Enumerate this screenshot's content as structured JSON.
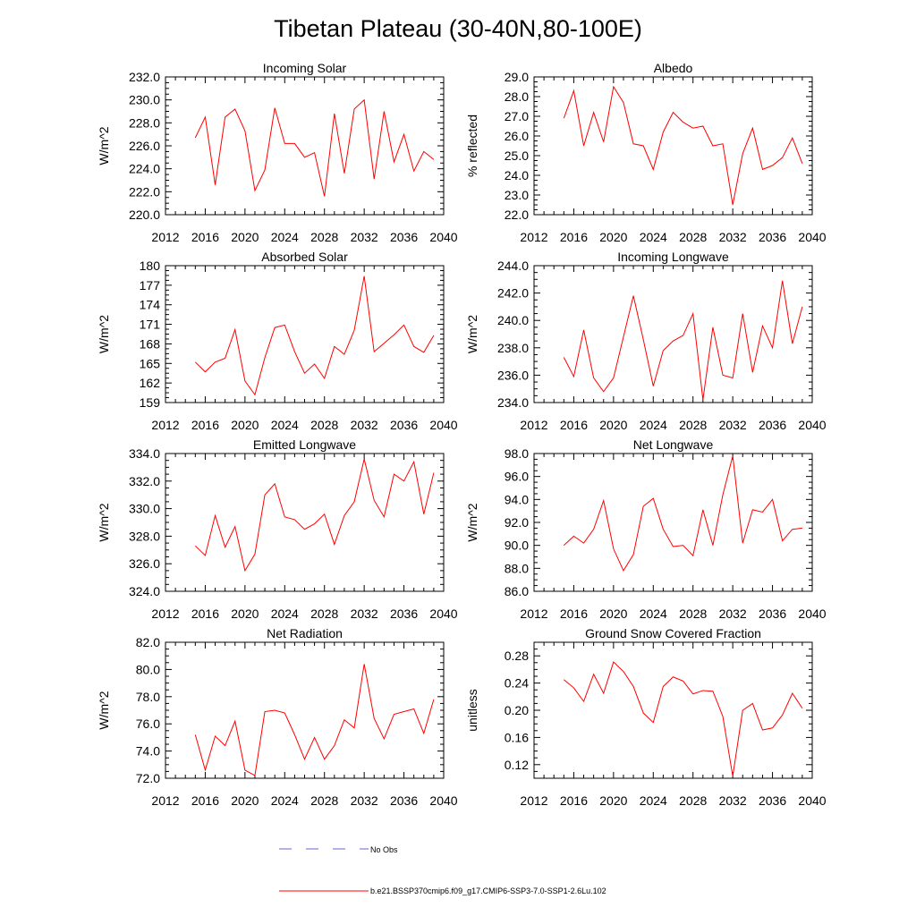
{
  "title": "Tibetan Plateau (30-40N,80-100E)",
  "legend": {
    "items": [
      {
        "label": "No Obs",
        "color": "#6666cc",
        "style": "dashed"
      },
      {
        "label": "b.e21.BSSP370cmip6.f09_g17.CMIP6-SSP3-7.0-SSP1-2.6Lu.102",
        "color": "#ff0000",
        "style": "solid"
      }
    ]
  },
  "chart_data": [
    {
      "type": "line",
      "title": "Incoming Solar",
      "xlabel": "",
      "ylabel": "W/m^2",
      "xlim": [
        2012,
        2040
      ],
      "ylim": [
        220.0,
        232.0
      ],
      "xticks": [
        2012,
        2016,
        2020,
        2024,
        2028,
        2032,
        2036,
        2040
      ],
      "yticks": [
        220.0,
        222.0,
        224.0,
        226.0,
        228.0,
        230.0,
        232.0
      ],
      "ytick_decimals": 1,
      "x": [
        2015,
        2016,
        2017,
        2018,
        2019,
        2020,
        2021,
        2022,
        2023,
        2024,
        2025,
        2026,
        2027,
        2028,
        2029,
        2030,
        2031,
        2032,
        2033,
        2034,
        2035,
        2036,
        2037,
        2038,
        2039
      ],
      "series": [
        {
          "name": "b.e21.BSSP370cmip6.f09_g17.CMIP6-SSP3-7.0-SSP1-2.6Lu.102",
          "color": "#ff0000",
          "values": [
            226.7,
            228.5,
            222.6,
            228.5,
            229.2,
            227.3,
            222.1,
            223.9,
            229.3,
            226.2,
            226.2,
            225.0,
            225.4,
            221.6,
            228.8,
            223.6,
            229.2,
            230.0,
            223.1,
            229.0,
            224.6,
            227.0,
            223.8,
            225.5,
            224.8
          ]
        }
      ]
    },
    {
      "type": "line",
      "title": "Albedo",
      "xlabel": "",
      "ylabel": "% reflected",
      "xlim": [
        2012,
        2040
      ],
      "ylim": [
        22.0,
        29.0
      ],
      "xticks": [
        2012,
        2016,
        2020,
        2024,
        2028,
        2032,
        2036,
        2040
      ],
      "yticks": [
        22.0,
        23.0,
        24.0,
        25.0,
        26.0,
        27.0,
        28.0,
        29.0
      ],
      "ytick_decimals": 1,
      "x": [
        2015,
        2016,
        2017,
        2018,
        2019,
        2020,
        2021,
        2022,
        2023,
        2024,
        2025,
        2026,
        2027,
        2028,
        2029,
        2030,
        2031,
        2032,
        2033,
        2034,
        2035,
        2036,
        2037,
        2038,
        2039
      ],
      "series": [
        {
          "name": "b.e21.BSSP370cmip6.f09_g17.CMIP6-SSP3-7.0-SSP1-2.6Lu.102",
          "color": "#ff0000",
          "values": [
            26.9,
            28.3,
            25.5,
            27.2,
            25.7,
            28.5,
            27.7,
            25.6,
            25.5,
            24.3,
            26.2,
            27.2,
            26.7,
            26.4,
            26.5,
            25.5,
            25.6,
            22.5,
            25.1,
            26.4,
            24.3,
            24.5,
            24.9,
            25.9,
            24.6
          ]
        }
      ]
    },
    {
      "type": "line",
      "title": "Absorbed Solar",
      "xlabel": "",
      "ylabel": "W/m^2",
      "xlim": [
        2012,
        2040
      ],
      "ylim": [
        159,
        180
      ],
      "xticks": [
        2012,
        2016,
        2020,
        2024,
        2028,
        2032,
        2036,
        2040
      ],
      "yticks": [
        159,
        162,
        165,
        168,
        171,
        174,
        177,
        180
      ],
      "ytick_decimals": 0,
      "x": [
        2015,
        2016,
        2017,
        2018,
        2019,
        2020,
        2021,
        2022,
        2023,
        2024,
        2025,
        2026,
        2027,
        2028,
        2029,
        2030,
        2031,
        2032,
        2033,
        2034,
        2035,
        2036,
        2037,
        2038,
        2039
      ],
      "series": [
        {
          "name": "b.e21.BSSP370cmip6.f09_g17.CMIP6-SSP3-7.0-SSP1-2.6Lu.102",
          "color": "#ff0000",
          "values": [
            165.2,
            163.7,
            165.2,
            165.8,
            170.2,
            162.3,
            160.2,
            165.9,
            170.5,
            170.9,
            166.8,
            163.5,
            164.9,
            162.7,
            167.6,
            166.4,
            170.1,
            178.4,
            166.8,
            168.1,
            169.4,
            170.9,
            167.6,
            166.7,
            169.3
          ]
        }
      ]
    },
    {
      "type": "line",
      "title": "Incoming Longwave",
      "xlabel": "",
      "ylabel": "W/m^2",
      "xlim": [
        2012,
        2040
      ],
      "ylim": [
        234.0,
        244.0
      ],
      "xticks": [
        2012,
        2016,
        2020,
        2024,
        2028,
        2032,
        2036,
        2040
      ],
      "yticks": [
        234.0,
        236.0,
        238.0,
        240.0,
        242.0,
        244.0
      ],
      "ytick_decimals": 1,
      "x": [
        2015,
        2016,
        2017,
        2018,
        2019,
        2020,
        2021,
        2022,
        2023,
        2024,
        2025,
        2026,
        2027,
        2028,
        2029,
        2030,
        2031,
        2032,
        2033,
        2034,
        2035,
        2036,
        2037,
        2038,
        2039
      ],
      "series": [
        {
          "name": "b.e21.BSSP370cmip6.f09_g17.CMIP6-SSP3-7.0-SSP1-2.6Lu.102",
          "color": "#ff0000",
          "values": [
            237.3,
            235.9,
            239.3,
            235.8,
            234.8,
            235.8,
            238.8,
            241.8,
            238.6,
            235.2,
            237.8,
            238.5,
            238.9,
            240.5,
            234.2,
            239.5,
            236.0,
            235.8,
            240.5,
            236.2,
            239.6,
            238.0,
            242.9,
            238.3,
            241.0
          ]
        }
      ]
    },
    {
      "type": "line",
      "title": "Emitted Longwave",
      "xlabel": "",
      "ylabel": "W/m^2",
      "xlim": [
        2012,
        2040
      ],
      "ylim": [
        324.0,
        334.0
      ],
      "xticks": [
        2012,
        2016,
        2020,
        2024,
        2028,
        2032,
        2036,
        2040
      ],
      "yticks": [
        324.0,
        326.0,
        328.0,
        330.0,
        332.0,
        334.0
      ],
      "ytick_decimals": 1,
      "x": [
        2015,
        2016,
        2017,
        2018,
        2019,
        2020,
        2021,
        2022,
        2023,
        2024,
        2025,
        2026,
        2027,
        2028,
        2029,
        2030,
        2031,
        2032,
        2033,
        2034,
        2035,
        2036,
        2037,
        2038,
        2039
      ],
      "series": [
        {
          "name": "b.e21.BSSP370cmip6.f09_g17.CMIP6-SSP3-7.0-SSP1-2.6Lu.102",
          "color": "#ff0000",
          "values": [
            327.3,
            326.6,
            329.5,
            327.2,
            328.7,
            325.5,
            326.7,
            331.0,
            331.8,
            329.4,
            329.2,
            328.5,
            328.9,
            329.6,
            327.4,
            329.5,
            330.5,
            333.6,
            330.6,
            329.4,
            332.5,
            332.0,
            333.4,
            329.6,
            332.6
          ]
        }
      ]
    },
    {
      "type": "line",
      "title": "Net Longwave",
      "xlabel": "",
      "ylabel": "W/m^2",
      "xlim": [
        2012,
        2040
      ],
      "ylim": [
        86.0,
        98.0
      ],
      "xticks": [
        2012,
        2016,
        2020,
        2024,
        2028,
        2032,
        2036,
        2040
      ],
      "yticks": [
        86.0,
        88.0,
        90.0,
        92.0,
        94.0,
        96.0,
        98.0
      ],
      "ytick_decimals": 1,
      "x": [
        2015,
        2016,
        2017,
        2018,
        2019,
        2020,
        2021,
        2022,
        2023,
        2024,
        2025,
        2026,
        2027,
        2028,
        2029,
        2030,
        2031,
        2032,
        2033,
        2034,
        2035,
        2036,
        2037,
        2038,
        2039
      ],
      "series": [
        {
          "name": "b.e21.BSSP370cmip6.f09_g17.CMIP6-SSP3-7.0-SSP1-2.6Lu.102",
          "color": "#ff0000",
          "values": [
            90.0,
            90.8,
            90.2,
            91.4,
            93.9,
            89.7,
            87.8,
            89.2,
            93.4,
            94.1,
            91.4,
            89.9,
            90.0,
            89.1,
            93.1,
            90.0,
            94.4,
            97.8,
            90.2,
            93.1,
            92.9,
            94.0,
            90.4,
            91.4,
            91.5
          ]
        }
      ]
    },
    {
      "type": "line",
      "title": "Net Radiation",
      "xlabel": "",
      "ylabel": "W/m^2",
      "xlim": [
        2012,
        2040
      ],
      "ylim": [
        72.0,
        82.0
      ],
      "xticks": [
        2012,
        2016,
        2020,
        2024,
        2028,
        2032,
        2036,
        2040
      ],
      "yticks": [
        72.0,
        74.0,
        76.0,
        78.0,
        80.0,
        82.0
      ],
      "ytick_decimals": 1,
      "x": [
        2015,
        2016,
        2017,
        2018,
        2019,
        2020,
        2021,
        2022,
        2023,
        2024,
        2025,
        2026,
        2027,
        2028,
        2029,
        2030,
        2031,
        2032,
        2033,
        2034,
        2035,
        2036,
        2037,
        2038,
        2039
      ],
      "series": [
        {
          "name": "b.e21.BSSP370cmip6.f09_g17.CMIP6-SSP3-7.0-SSP1-2.6Lu.102",
          "color": "#ff0000",
          "values": [
            75.2,
            72.6,
            75.1,
            74.4,
            76.2,
            72.6,
            72.2,
            76.9,
            77.0,
            76.8,
            75.2,
            73.4,
            75.0,
            73.4,
            74.4,
            76.3,
            75.7,
            80.4,
            76.4,
            74.9,
            76.7,
            76.9,
            77.1,
            75.3,
            77.8
          ]
        }
      ]
    },
    {
      "type": "line",
      "title": "Ground Snow Covered Fraction",
      "xlabel": "",
      "ylabel": "unitless",
      "xlim": [
        2012,
        2040
      ],
      "ylim": [
        0.1,
        0.3
      ],
      "xticks": [
        2012,
        2016,
        2020,
        2024,
        2028,
        2032,
        2036,
        2040
      ],
      "yticks": [
        0.12,
        0.16,
        0.2,
        0.24,
        0.28
      ],
      "ytick_decimals": 2,
      "x": [
        2015,
        2016,
        2017,
        2018,
        2019,
        2020,
        2021,
        2022,
        2023,
        2024,
        2025,
        2026,
        2027,
        2028,
        2029,
        2030,
        2031,
        2032,
        2033,
        2034,
        2035,
        2036,
        2037,
        2038,
        2039
      ],
      "series": [
        {
          "name": "b.e21.BSSP370cmip6.f09_g17.CMIP6-SSP3-7.0-SSP1-2.6Lu.102",
          "color": "#ff0000",
          "values": [
            0.245,
            0.233,
            0.213,
            0.253,
            0.225,
            0.271,
            0.257,
            0.235,
            0.196,
            0.182,
            0.235,
            0.249,
            0.243,
            0.224,
            0.229,
            0.228,
            0.191,
            0.103,
            0.2,
            0.21,
            0.171,
            0.174,
            0.193,
            0.225,
            0.203
          ]
        }
      ]
    }
  ]
}
